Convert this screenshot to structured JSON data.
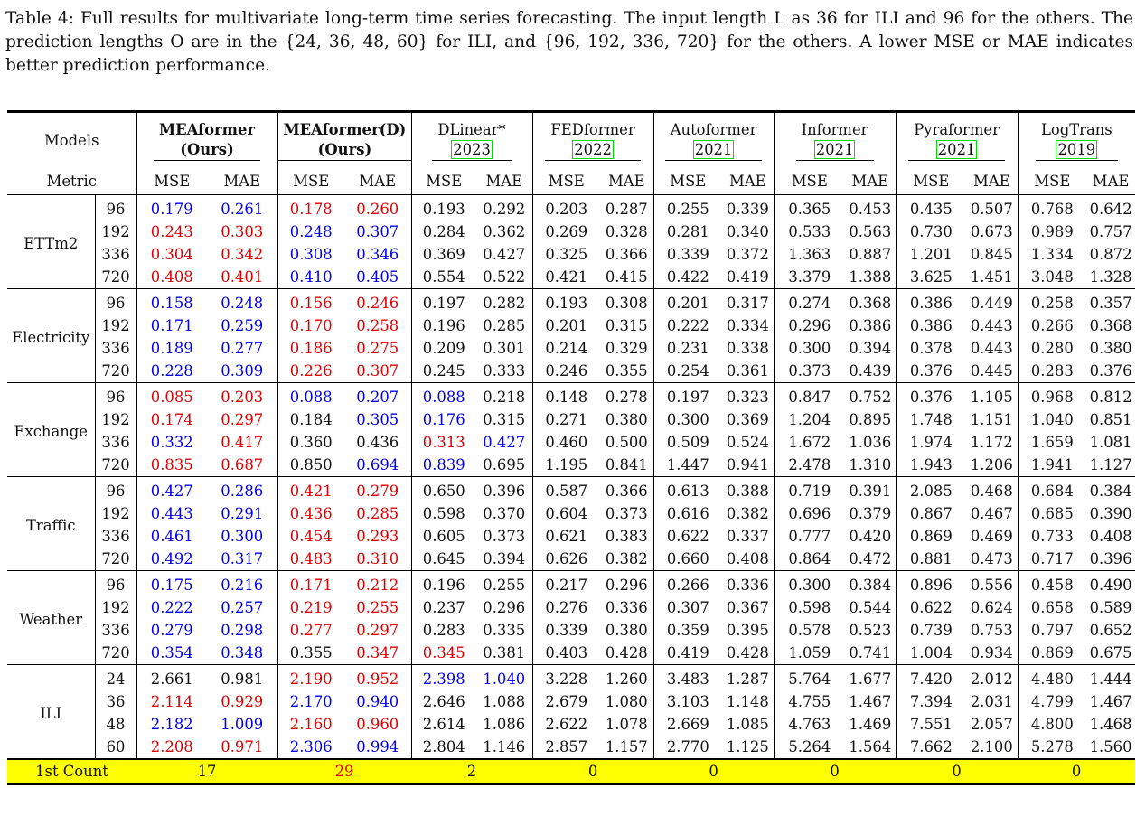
{
  "caption": "Table 4: Full results for multivariate long-term time series forecasting. The input length L as 36 for ILI and 96 for the others. The prediction lengths O are in the {24, 36, 48, 60} for ILI, and {96, 192, 336, 720} for the others. A lower MSE or MAE indicates better prediction performance.",
  "header": {
    "models_label": "Models",
    "metric_label": "Metric",
    "models": [
      {
        "name": "MEAformer",
        "sub": "(Ours)",
        "bold": true
      },
      {
        "name": "MEAformer(D)",
        "sub": "(Ours)",
        "bold": true
      },
      {
        "name": "DLinear*",
        "sub": "2023",
        "bold": false
      },
      {
        "name": "FEDformer",
        "sub": "2022",
        "bold": false
      },
      {
        "name": "Autoformer",
        "sub": "2021",
        "bold": false
      },
      {
        "name": "Informer",
        "sub": "2021",
        "bold": false
      },
      {
        "name": "Pyraformer",
        "sub": "2021",
        "bold": false
      },
      {
        "name": "LogTrans",
        "sub": "2019",
        "bold": false
      }
    ],
    "metrics": [
      "MSE",
      "MAE"
    ]
  },
  "groups": [
    {
      "dataset": "ETTm2",
      "rows": [
        {
          "len": "96",
          "vals": [
            "0.179",
            "0.261",
            "0.178",
            "0.260",
            "0.193",
            "0.292",
            "0.203",
            "0.287",
            "0.255",
            "0.339",
            "0.365",
            "0.453",
            "0.435",
            "0.507",
            "0.768",
            "0.642"
          ],
          "style": [
            "s",
            "s",
            "b",
            "b",
            "",
            "",
            "",
            "",
            "",
            "",
            "",
            "",
            "",
            "",
            "",
            ""
          ]
        },
        {
          "len": "192",
          "vals": [
            "0.243",
            "0.303",
            "0.248",
            "0.307",
            "0.284",
            "0.362",
            "0.269",
            "0.328",
            "0.281",
            "0.340",
            "0.533",
            "0.563",
            "0.730",
            "0.673",
            "0.989",
            "0.757"
          ],
          "style": [
            "b",
            "b",
            "s",
            "s",
            "",
            "",
            "",
            "",
            "",
            "",
            "",
            "",
            "",
            "",
            "",
            ""
          ]
        },
        {
          "len": "336",
          "vals": [
            "0.304",
            "0.342",
            "0.308",
            "0.346",
            "0.369",
            "0.427",
            "0.325",
            "0.366",
            "0.339",
            "0.372",
            "1.363",
            "0.887",
            "1.201",
            "0.845",
            "1.334",
            "0.872"
          ],
          "style": [
            "b",
            "b",
            "s",
            "s",
            "",
            "",
            "",
            "",
            "",
            "",
            "",
            "",
            "",
            "",
            "",
            ""
          ]
        },
        {
          "len": "720",
          "vals": [
            "0.408",
            "0.401",
            "0.410",
            "0.405",
            "0.554",
            "0.522",
            "0.421",
            "0.415",
            "0.422",
            "0.419",
            "3.379",
            "1.388",
            "3.625",
            "1.451",
            "3.048",
            "1.328"
          ],
          "style": [
            "b",
            "b",
            "s",
            "s",
            "",
            "",
            "",
            "",
            "",
            "",
            "",
            "",
            "",
            "",
            "",
            ""
          ]
        }
      ]
    },
    {
      "dataset": "Electricity",
      "rows": [
        {
          "len": "96",
          "vals": [
            "0.158",
            "0.248",
            "0.156",
            "0.246",
            "0.197",
            "0.282",
            "0.193",
            "0.308",
            "0.201",
            "0.317",
            "0.274",
            "0.368",
            "0.386",
            "0.449",
            "0.258",
            "0.357"
          ],
          "style": [
            "s",
            "s",
            "b",
            "b",
            "",
            "",
            "",
            "",
            "",
            "",
            "",
            "",
            "",
            "",
            "",
            ""
          ]
        },
        {
          "len": "192",
          "vals": [
            "0.171",
            "0.259",
            "0.170",
            "0.258",
            "0.196",
            "0.285",
            "0.201",
            "0.315",
            "0.222",
            "0.334",
            "0.296",
            "0.386",
            "0.386",
            "0.443",
            "0.266",
            "0.368"
          ],
          "style": [
            "s",
            "s",
            "b",
            "b",
            "",
            "",
            "",
            "",
            "",
            "",
            "",
            "",
            "",
            "",
            "",
            ""
          ]
        },
        {
          "len": "336",
          "vals": [
            "0.189",
            "0.277",
            "0.186",
            "0.275",
            "0.209",
            "0.301",
            "0.214",
            "0.329",
            "0.231",
            "0.338",
            "0.300",
            "0.394",
            "0.378",
            "0.443",
            "0.280",
            "0.380"
          ],
          "style": [
            "s",
            "s",
            "b",
            "b",
            "",
            "",
            "",
            "",
            "",
            "",
            "",
            "",
            "",
            "",
            "",
            ""
          ]
        },
        {
          "len": "720",
          "vals": [
            "0.228",
            "0.309",
            "0.226",
            "0.307",
            "0.245",
            "0.333",
            "0.246",
            "0.355",
            "0.254",
            "0.361",
            "0.373",
            "0.439",
            "0.376",
            "0.445",
            "0.283",
            "0.376"
          ],
          "style": [
            "s",
            "s",
            "b",
            "b",
            "",
            "",
            "",
            "",
            "",
            "",
            "",
            "",
            "",
            "",
            "",
            ""
          ]
        }
      ]
    },
    {
      "dataset": "Exchange",
      "rows": [
        {
          "len": "96",
          "vals": [
            "0.085",
            "0.203",
            "0.088",
            "0.207",
            "0.088",
            "0.218",
            "0.148",
            "0.278",
            "0.197",
            "0.323",
            "0.847",
            "0.752",
            "0.376",
            "1.105",
            "0.968",
            "0.812"
          ],
          "style": [
            "b",
            "b",
            "s",
            "s",
            "s",
            "",
            "",
            "",
            "",
            "",
            "",
            "",
            "",
            "",
            "",
            ""
          ]
        },
        {
          "len": "192",
          "vals": [
            "0.174",
            "0.297",
            "0.184",
            "0.305",
            "0.176",
            "0.315",
            "0.271",
            "0.380",
            "0.300",
            "0.369",
            "1.204",
            "0.895",
            "1.748",
            "1.151",
            "1.040",
            "0.851"
          ],
          "style": [
            "b",
            "b",
            "",
            "s",
            "s",
            "",
            "",
            "",
            "",
            "",
            "",
            "",
            "",
            "",
            "",
            ""
          ]
        },
        {
          "len": "336",
          "vals": [
            "0.332",
            "0.417",
            "0.360",
            "0.436",
            "0.313",
            "0.427",
            "0.460",
            "0.500",
            "0.509",
            "0.524",
            "1.672",
            "1.036",
            "1.974",
            "1.172",
            "1.659",
            "1.081"
          ],
          "style": [
            "s",
            "b",
            "",
            "",
            "b",
            "s",
            "",
            "",
            "",
            "",
            "",
            "",
            "",
            "",
            "",
            ""
          ]
        },
        {
          "len": "720",
          "vals": [
            "0.835",
            "0.687",
            "0.850",
            "0.694",
            "0.839",
            "0.695",
            "1.195",
            "0.841",
            "1.447",
            "0.941",
            "2.478",
            "1.310",
            "1.943",
            "1.206",
            "1.941",
            "1.127"
          ],
          "style": [
            "b",
            "b",
            "",
            "s",
            "s",
            "",
            "",
            "",
            "",
            "",
            "",
            "",
            "",
            "",
            "",
            ""
          ]
        }
      ]
    },
    {
      "dataset": "Traffic",
      "rows": [
        {
          "len": "96",
          "vals": [
            "0.427",
            "0.286",
            "0.421",
            "0.279",
            "0.650",
            "0.396",
            "0.587",
            "0.366",
            "0.613",
            "0.388",
            "0.719",
            "0.391",
            "2.085",
            "0.468",
            "0.684",
            "0.384"
          ],
          "style": [
            "s",
            "s",
            "b",
            "b",
            "",
            "",
            "",
            "",
            "",
            "",
            "",
            "",
            "",
            "",
            "",
            ""
          ]
        },
        {
          "len": "192",
          "vals": [
            "0.443",
            "0.291",
            "0.436",
            "0.285",
            "0.598",
            "0.370",
            "0.604",
            "0.373",
            "0.616",
            "0.382",
            "0.696",
            "0.379",
            "0.867",
            "0.467",
            "0.685",
            "0.390"
          ],
          "style": [
            "s",
            "s",
            "b",
            "b",
            "",
            "",
            "",
            "",
            "",
            "",
            "",
            "",
            "",
            "",
            "",
            ""
          ]
        },
        {
          "len": "336",
          "vals": [
            "0.461",
            "0.300",
            "0.454",
            "0.293",
            "0.605",
            "0.373",
            "0.621",
            "0.383",
            "0.622",
            "0.337",
            "0.777",
            "0.420",
            "0.869",
            "0.469",
            "0.733",
            "0.408"
          ],
          "style": [
            "s",
            "s",
            "b",
            "b",
            "",
            "",
            "",
            "",
            "",
            "",
            "",
            "",
            "",
            "",
            "",
            ""
          ]
        },
        {
          "len": "720",
          "vals": [
            "0.492",
            "0.317",
            "0.483",
            "0.310",
            "0.645",
            "0.394",
            "0.626",
            "0.382",
            "0.660",
            "0.408",
            "0.864",
            "0.472",
            "0.881",
            "0.473",
            "0.717",
            "0.396"
          ],
          "style": [
            "s",
            "s",
            "b",
            "b",
            "",
            "",
            "",
            "",
            "",
            "",
            "",
            "",
            "",
            "",
            "",
            ""
          ]
        }
      ]
    },
    {
      "dataset": "Weather",
      "rows": [
        {
          "len": "96",
          "vals": [
            "0.175",
            "0.216",
            "0.171",
            "0.212",
            "0.196",
            "0.255",
            "0.217",
            "0.296",
            "0.266",
            "0.336",
            "0.300",
            "0.384",
            "0.896",
            "0.556",
            "0.458",
            "0.490"
          ],
          "style": [
            "s",
            "s",
            "b",
            "b",
            "",
            "",
            "",
            "",
            "",
            "",
            "",
            "",
            "",
            "",
            "",
            ""
          ]
        },
        {
          "len": "192",
          "vals": [
            "0.222",
            "0.257",
            "0.219",
            "0.255",
            "0.237",
            "0.296",
            "0.276",
            "0.336",
            "0.307",
            "0.367",
            "0.598",
            "0.544",
            "0.622",
            "0.624",
            "0.658",
            "0.589"
          ],
          "style": [
            "s",
            "s",
            "b",
            "b",
            "",
            "",
            "",
            "",
            "",
            "",
            "",
            "",
            "",
            "",
            "",
            ""
          ]
        },
        {
          "len": "336",
          "vals": [
            "0.279",
            "0.298",
            "0.277",
            "0.297",
            "0.283",
            "0.335",
            "0.339",
            "0.380",
            "0.359",
            "0.395",
            "0.578",
            "0.523",
            "0.739",
            "0.753",
            "0.797",
            "0.652"
          ],
          "style": [
            "s",
            "s",
            "b",
            "b",
            "",
            "",
            "",
            "",
            "",
            "",
            "",
            "",
            "",
            "",
            "",
            ""
          ]
        },
        {
          "len": "720",
          "vals": [
            "0.354",
            "0.348",
            "0.355",
            "0.347",
            "0.345",
            "0.381",
            "0.403",
            "0.428",
            "0.419",
            "0.428",
            "1.059",
            "0.741",
            "1.004",
            "0.934",
            "0.869",
            "0.675"
          ],
          "style": [
            "s",
            "s",
            "",
            "b",
            "b",
            "",
            "",
            "",
            "",
            "",
            "",
            "",
            "",
            "",
            "",
            ""
          ]
        }
      ]
    },
    {
      "dataset": "ILI",
      "rows": [
        {
          "len": "24",
          "vals": [
            "2.661",
            "0.981",
            "2.190",
            "0.952",
            "2.398",
            "1.040",
            "3.228",
            "1.260",
            "3.483",
            "1.287",
            "5.764",
            "1.677",
            "7.420",
            "2.012",
            "4.480",
            "1.444"
          ],
          "style": [
            "",
            "",
            "b",
            "b",
            "s",
            "s",
            "",
            "",
            "",
            "",
            "",
            "",
            "",
            "",
            "",
            ""
          ]
        },
        {
          "len": "36",
          "vals": [
            "2.114",
            "0.929",
            "2.170",
            "0.940",
            "2.646",
            "1.088",
            "2.679",
            "1.080",
            "3.103",
            "1.148",
            "4.755",
            "1.467",
            "7.394",
            "2.031",
            "4.799",
            "1.467"
          ],
          "style": [
            "b",
            "b",
            "s",
            "s",
            "",
            "",
            "",
            "",
            "",
            "",
            "",
            "",
            "",
            "",
            "",
            ""
          ]
        },
        {
          "len": "48",
          "vals": [
            "2.182",
            "1.009",
            "2.160",
            "0.960",
            "2.614",
            "1.086",
            "2.622",
            "1.078",
            "2.669",
            "1.085",
            "4.763",
            "1.469",
            "7.551",
            "2.057",
            "4.800",
            "1.468"
          ],
          "style": [
            "s",
            "s",
            "b",
            "b",
            "",
            "",
            "",
            "",
            "",
            "",
            "",
            "",
            "",
            "",
            "",
            ""
          ]
        },
        {
          "len": "60",
          "vals": [
            "2.208",
            "0.971",
            "2.306",
            "0.994",
            "2.804",
            "1.146",
            "2.857",
            "1.157",
            "2.770",
            "1.125",
            "5.264",
            "1.564",
            "7.662",
            "2.100",
            "5.278",
            "1.560"
          ],
          "style": [
            "b",
            "b",
            "s",
            "s",
            "",
            "",
            "",
            "",
            "",
            "",
            "",
            "",
            "",
            "",
            "",
            ""
          ]
        }
      ]
    }
  ],
  "count_row": {
    "label": "1st Count",
    "values": [
      "17",
      "29",
      "2",
      "0",
      "0",
      "0",
      "0",
      "0"
    ],
    "best_index": 1
  },
  "colors": {
    "best": "#e00000",
    "second": "#0000ee",
    "count_bg": "#ffff00",
    "cite_box": "#00dd00"
  }
}
